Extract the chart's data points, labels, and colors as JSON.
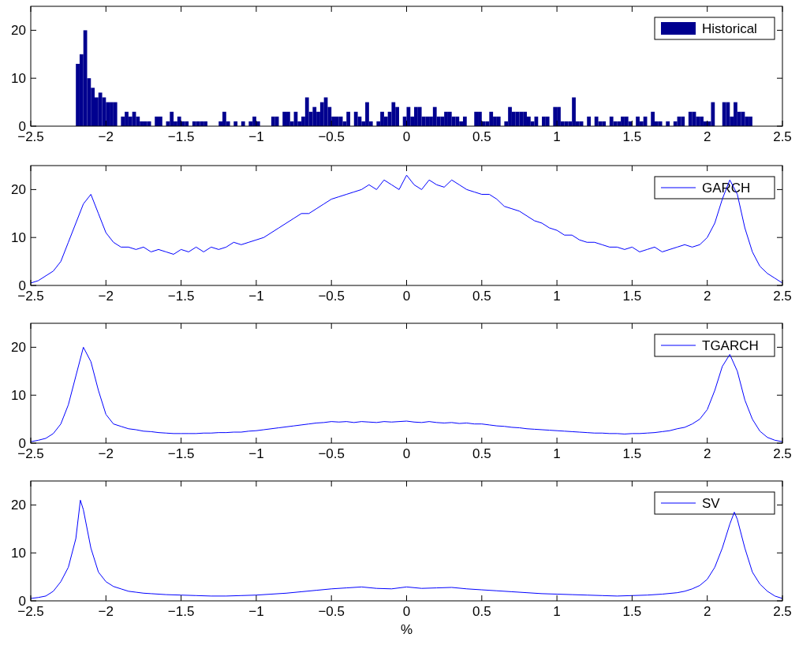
{
  "chart_data": [
    {
      "type": "histogram",
      "legend": "top right",
      "xlim": [
        -2.5,
        2.5
      ],
      "xticks": [
        -2.5,
        -2,
        -1.5,
        -1,
        -0.5,
        0,
        0.5,
        1,
        1.5,
        2,
        2.5
      ],
      "ylim": [
        0,
        25
      ],
      "yticks": [
        0,
        10,
        20
      ],
      "bins": [
        -2.2,
        -2.175,
        -2.15,
        -2.125,
        -2.1,
        -2.075,
        -2.05,
        -2.025,
        -2,
        -1.975,
        -1.95,
        -1.925,
        -1.9,
        -1.875,
        -1.85,
        -1.825,
        -1.8,
        -1.775,
        -1.75,
        -1.725,
        -1.7,
        -1.675,
        -1.65,
        -1.625,
        -1.6,
        -1.575,
        -1.55,
        -1.525,
        -1.5,
        -1.475,
        -1.45,
        -1.425,
        -1.4,
        -1.375,
        -1.35,
        -1.325,
        -1.3,
        -1.275,
        -1.25,
        -1.225,
        -1.2,
        -1.175,
        -1.15,
        -1.125,
        -1.1,
        -1.075,
        -1.05,
        -1.025,
        -1,
        -0.975,
        -0.95,
        -0.925,
        -0.9,
        -0.875,
        -0.85,
        -0.825,
        -0.8,
        -0.775,
        -0.75,
        -0.725,
        -0.7,
        -0.675,
        -0.65,
        -0.625,
        -0.6,
        -0.575,
        -0.55,
        -0.525,
        -0.5,
        -0.475,
        -0.45,
        -0.425,
        -0.4,
        -0.375,
        -0.35,
        -0.325,
        -0.3,
        -0.275,
        -0.25,
        -0.225,
        -0.2,
        -0.175,
        -0.15,
        -0.125,
        -0.1,
        -0.075,
        -0.05,
        -0.025,
        0,
        0.025,
        0.05,
        0.075,
        0.1,
        0.125,
        0.15,
        0.175,
        0.2,
        0.225,
        0.25,
        0.275,
        0.3,
        0.325,
        0.35,
        0.375,
        0.4,
        0.425,
        0.45,
        0.475,
        0.5,
        0.525,
        0.55,
        0.575,
        0.6,
        0.625,
        0.65,
        0.675,
        0.7,
        0.725,
        0.75,
        0.775,
        0.8,
        0.825,
        0.85,
        0.875,
        0.9,
        0.925,
        0.95,
        0.975,
        1,
        1.025,
        1.05,
        1.075,
        1.1,
        1.125,
        1.15,
        1.175,
        1.2,
        1.225,
        1.25,
        1.275,
        1.3,
        1.325,
        1.35,
        1.375,
        1.4,
        1.425,
        1.45,
        1.475,
        1.5,
        1.525,
        1.55,
        1.575,
        1.6,
        1.625,
        1.65,
        1.675,
        1.7,
        1.725,
        1.75,
        1.775,
        1.8,
        1.825,
        1.85,
        1.875,
        1.9,
        1.925,
        1.95,
        1.975,
        2,
        2.025,
        2.05,
        2.075,
        2.1,
        2.125,
        2.15,
        2.175,
        2.2,
        2.225,
        2.25,
        2.275,
        2.3
      ],
      "series": [
        {
          "name": "Historical",
          "color": "#00008f",
          "values": [
            13,
            15,
            20,
            10,
            8,
            6,
            7,
            6,
            5,
            5,
            5,
            0,
            2,
            3,
            2,
            3,
            2,
            1,
            1,
            1,
            0,
            2,
            2,
            0,
            1,
            3,
            1,
            2,
            1,
            1,
            0,
            1,
            1,
            1,
            1,
            0,
            0,
            0,
            1,
            3,
            1,
            0,
            1,
            0,
            1,
            0,
            1,
            2,
            1,
            0,
            0,
            0,
            2,
            2,
            0,
            3,
            3,
            1,
            3,
            1,
            2,
            6,
            3,
            4,
            3,
            5,
            6,
            4,
            2,
            2,
            2,
            1,
            3,
            0,
            3,
            2,
            1,
            5,
            1,
            0,
            1,
            3,
            2,
            3,
            5,
            4,
            0,
            2,
            4,
            2,
            4,
            4,
            2,
            2,
            2,
            4,
            2,
            2,
            3,
            3,
            2,
            2,
            1,
            2,
            0,
            0,
            3,
            3,
            1,
            1,
            3,
            2,
            2,
            0,
            1,
            4,
            3,
            3,
            3,
            3,
            2,
            1,
            2,
            0,
            2,
            2,
            0,
            4,
            4,
            1,
            1,
            1,
            6,
            1,
            1,
            0,
            2,
            0,
            2,
            1,
            1,
            0,
            2,
            1,
            1,
            2,
            2,
            1,
            0,
            2,
            1,
            2,
            0,
            3,
            1,
            1,
            0,
            1,
            0,
            1,
            2,
            2,
            0,
            3,
            3,
            2,
            2,
            1,
            1,
            5,
            0,
            0,
            5,
            5,
            2,
            5,
            3,
            3,
            2,
            2
          ]
        }
      ]
    },
    {
      "type": "line",
      "legend": "top right",
      "xlim": [
        -2.5,
        2.5
      ],
      "xticks": [
        -2.5,
        -2,
        -1.5,
        -1,
        -0.5,
        0,
        0.5,
        1,
        1.5,
        2,
        2.5
      ],
      "ylim": [
        0,
        25
      ],
      "yticks": [
        0,
        10,
        20
      ],
      "series": [
        {
          "name": "GARCH",
          "color": "#0000ff",
          "x": [
            -2.5,
            -2.45,
            -2.4,
            -2.35,
            -2.3,
            -2.25,
            -2.2,
            -2.15,
            -2.1,
            -2.05,
            -2,
            -1.95,
            -1.9,
            -1.85,
            -1.8,
            -1.75,
            -1.7,
            -1.65,
            -1.6,
            -1.55,
            -1.5,
            -1.45,
            -1.4,
            -1.35,
            -1.3,
            -1.25,
            -1.2,
            -1.15,
            -1.1,
            -1.05,
            -1,
            -0.95,
            -0.9,
            -0.85,
            -0.8,
            -0.75,
            -0.7,
            -0.65,
            -0.6,
            -0.55,
            -0.5,
            -0.45,
            -0.4,
            -0.35,
            -0.3,
            -0.25,
            -0.2,
            -0.15,
            -0.1,
            -0.05,
            0,
            0.05,
            0.1,
            0.15,
            0.2,
            0.25,
            0.3,
            0.35,
            0.4,
            0.45,
            0.5,
            0.55,
            0.6,
            0.65,
            0.7,
            0.75,
            0.8,
            0.85,
            0.9,
            0.95,
            1,
            1.05,
            1.1,
            1.15,
            1.2,
            1.25,
            1.3,
            1.35,
            1.4,
            1.45,
            1.5,
            1.55,
            1.6,
            1.65,
            1.7,
            1.75,
            1.8,
            1.85,
            1.9,
            1.95,
            2,
            2.05,
            2.1,
            2.15,
            2.2,
            2.25,
            2.3,
            2.35,
            2.4,
            2.45,
            2.5
          ],
          "values": [
            0.5,
            1,
            2,
            3,
            5,
            9,
            13,
            17,
            19,
            15,
            11,
            9,
            8,
            8,
            7.5,
            8,
            7,
            7.5,
            7,
            6.5,
            7.5,
            7,
            8,
            7,
            8,
            7.5,
            8,
            9,
            8.5,
            9,
            9.5,
            10,
            11,
            12,
            13,
            14,
            15,
            15,
            16,
            17,
            18,
            18.5,
            19,
            19.5,
            20,
            21,
            20,
            22,
            21,
            20,
            23,
            21,
            20,
            22,
            21,
            20.5,
            22,
            21,
            20,
            19.5,
            19,
            19,
            18,
            16.5,
            16,
            15.5,
            14.5,
            13.5,
            13,
            12,
            11.5,
            10.5,
            10.5,
            9.5,
            9,
            9,
            8.5,
            8,
            8,
            7.5,
            8,
            7,
            7.5,
            8,
            7,
            7.5,
            8,
            8.5,
            8,
            8.5,
            10,
            13,
            18,
            22,
            19,
            12,
            7,
            4,
            2.5,
            1.5,
            0.5
          ]
        }
      ]
    },
    {
      "type": "line",
      "legend": "top right",
      "xlim": [
        -2.5,
        2.5
      ],
      "xticks": [
        -2.5,
        -2,
        -1.5,
        -1,
        -0.5,
        0,
        0.5,
        1,
        1.5,
        2,
        2.5
      ],
      "ylim": [
        0,
        25
      ],
      "yticks": [
        0,
        10,
        20
      ],
      "series": [
        {
          "name": "TGARCH",
          "color": "#0000ff",
          "x": [
            -2.5,
            -2.45,
            -2.4,
            -2.35,
            -2.3,
            -2.25,
            -2.2,
            -2.15,
            -2.1,
            -2.05,
            -2,
            -1.95,
            -1.9,
            -1.85,
            -1.8,
            -1.75,
            -1.7,
            -1.65,
            -1.6,
            -1.55,
            -1.5,
            -1.45,
            -1.4,
            -1.35,
            -1.3,
            -1.25,
            -1.2,
            -1.15,
            -1.1,
            -1.05,
            -1,
            -0.95,
            -0.9,
            -0.85,
            -0.8,
            -0.75,
            -0.7,
            -0.65,
            -0.6,
            -0.55,
            -0.5,
            -0.45,
            -0.4,
            -0.35,
            -0.3,
            -0.25,
            -0.2,
            -0.15,
            -0.1,
            -0.05,
            0,
            0.05,
            0.1,
            0.15,
            0.2,
            0.25,
            0.3,
            0.35,
            0.4,
            0.45,
            0.5,
            0.55,
            0.6,
            0.65,
            0.7,
            0.75,
            0.8,
            0.85,
            0.9,
            0.95,
            1,
            1.05,
            1.1,
            1.15,
            1.2,
            1.25,
            1.3,
            1.35,
            1.4,
            1.45,
            1.5,
            1.55,
            1.6,
            1.65,
            1.7,
            1.75,
            1.8,
            1.85,
            1.9,
            1.95,
            2,
            2.05,
            2.1,
            2.15,
            2.2,
            2.25,
            2.3,
            2.35,
            2.4,
            2.45,
            2.5
          ],
          "values": [
            0.3,
            0.6,
            1,
            2,
            4,
            8,
            14,
            20,
            17,
            11,
            6,
            4,
            3.5,
            3,
            2.8,
            2.5,
            2.4,
            2.2,
            2.1,
            2,
            2,
            2,
            2,
            2.1,
            2.1,
            2.2,
            2.2,
            2.3,
            2.3,
            2.5,
            2.6,
            2.8,
            3,
            3.2,
            3.4,
            3.6,
            3.8,
            4,
            4.2,
            4.3,
            4.5,
            4.4,
            4.5,
            4.3,
            4.5,
            4.4,
            4.3,
            4.5,
            4.4,
            4.5,
            4.6,
            4.4,
            4.3,
            4.5,
            4.3,
            4.2,
            4.3,
            4.1,
            4.2,
            4,
            4,
            3.8,
            3.6,
            3.5,
            3.3,
            3.2,
            3,
            2.9,
            2.8,
            2.7,
            2.6,
            2.5,
            2.4,
            2.3,
            2.2,
            2.1,
            2.1,
            2,
            2,
            1.9,
            2,
            2,
            2.1,
            2.2,
            2.4,
            2.6,
            3,
            3.3,
            4,
            5,
            7,
            11,
            16,
            18.5,
            15,
            9,
            5,
            2.5,
            1.2,
            0.6,
            0.3
          ]
        }
      ]
    },
    {
      "type": "line",
      "legend": "top right",
      "xlabel": "%",
      "xlim": [
        -2.5,
        2.5
      ],
      "xticks": [
        -2.5,
        -2,
        -1.5,
        -1,
        -0.5,
        0,
        0.5,
        1,
        1.5,
        2,
        2.5
      ],
      "ylim": [
        0,
        25
      ],
      "yticks": [
        0,
        10,
        20
      ],
      "series": [
        {
          "name": "SV",
          "color": "#0000ff",
          "x": [
            -2.5,
            -2.45,
            -2.4,
            -2.35,
            -2.3,
            -2.25,
            -2.2,
            -2.17,
            -2.15,
            -2.1,
            -2.05,
            -2,
            -1.95,
            -1.9,
            -1.85,
            -1.8,
            -1.75,
            -1.7,
            -1.6,
            -1.5,
            -1.4,
            -1.3,
            -1.2,
            -1.1,
            -1,
            -0.9,
            -0.8,
            -0.7,
            -0.6,
            -0.5,
            -0.4,
            -0.3,
            -0.2,
            -0.1,
            0,
            0.1,
            0.2,
            0.3,
            0.4,
            0.5,
            0.6,
            0.7,
            0.8,
            0.9,
            1,
            1.1,
            1.2,
            1.3,
            1.4,
            1.5,
            1.6,
            1.7,
            1.8,
            1.85,
            1.9,
            1.95,
            2,
            2.05,
            2.1,
            2.15,
            2.18,
            2.2,
            2.25,
            2.3,
            2.35,
            2.4,
            2.45,
            2.5
          ],
          "values": [
            0.5,
            0.7,
            1,
            2,
            4,
            7,
            13,
            21,
            19,
            11,
            6,
            4,
            3,
            2.5,
            2,
            1.8,
            1.6,
            1.5,
            1.3,
            1.2,
            1.1,
            1,
            1,
            1.1,
            1.2,
            1.4,
            1.6,
            1.9,
            2.2,
            2.5,
            2.7,
            2.9,
            2.6,
            2.5,
            2.9,
            2.6,
            2.7,
            2.8,
            2.5,
            2.3,
            2.1,
            1.9,
            1.7,
            1.5,
            1.4,
            1.3,
            1.2,
            1.1,
            1,
            1.1,
            1.2,
            1.4,
            1.7,
            2,
            2.5,
            3.2,
            4.5,
            7,
            11,
            16,
            18.5,
            17,
            11,
            6,
            3.5,
            2,
            1,
            0.5
          ]
        }
      ]
    }
  ]
}
